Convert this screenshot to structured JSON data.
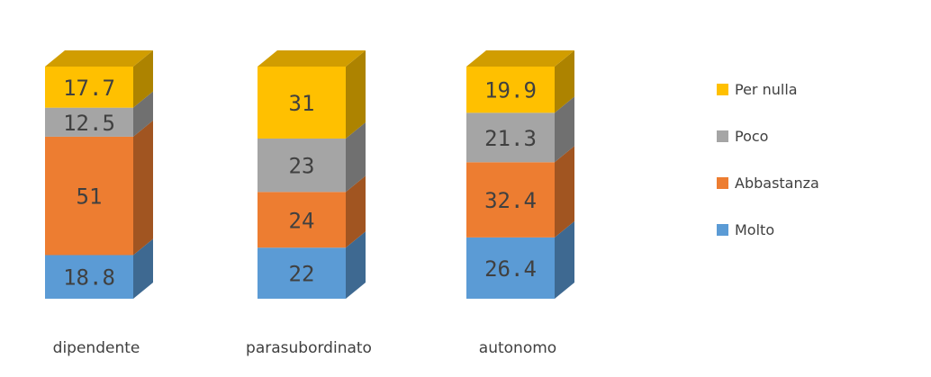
{
  "chart_data": {
    "type": "bar",
    "stacked": true,
    "style": "3d-column",
    "categories": [
      "dipendente",
      "parasubordinato",
      "autonomo"
    ],
    "series": [
      {
        "name": "Molto",
        "color": "#5B9BD5",
        "values": [
          18.8,
          22,
          26.4
        ]
      },
      {
        "name": "Abbastanza",
        "color": "#ED7D31",
        "values": [
          51,
          24,
          32.4
        ]
      },
      {
        "name": "Poco",
        "color": "#A5A5A5",
        "values": [
          12.5,
          23,
          21.3
        ]
      },
      {
        "name": "Per nulla",
        "color": "#FFC000",
        "values": [
          17.7,
          31,
          19.9
        ]
      }
    ],
    "data_labels": [
      [
        "18.8",
        "22",
        "26.4"
      ],
      [
        "51",
        "24",
        "32.4"
      ],
      [
        "12.5",
        "23",
        "21.3"
      ],
      [
        "17.7",
        "31",
        "19.9"
      ]
    ],
    "legend": {
      "position": "right",
      "order": [
        "Per nulla",
        "Poco",
        "Abbastanza",
        "Molto"
      ]
    },
    "title": "",
    "xlabel": "",
    "ylabel": "",
    "ylim": [
      0,
      100
    ],
    "grid": false
  }
}
